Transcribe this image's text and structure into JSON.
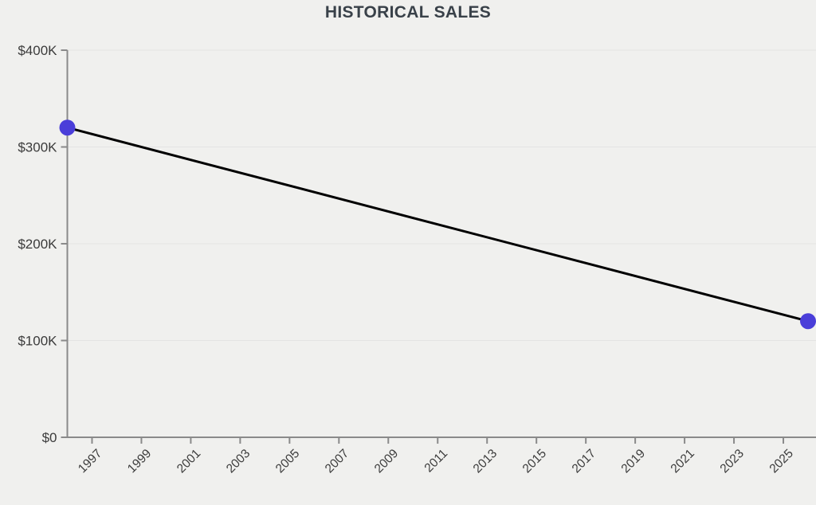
{
  "chart_data": {
    "type": "line",
    "title": "HISTORICAL SALES",
    "series": [
      {
        "name": "Historical sales",
        "points": [
          {
            "x": 1996,
            "y": 320000
          },
          {
            "x": 2026,
            "y": 120000
          }
        ]
      }
    ],
    "xlim": [
      1996,
      2026
    ],
    "ylim": [
      0,
      400000
    ],
    "x_tick_values": [
      1997,
      1999,
      2001,
      2003,
      2005,
      2007,
      2009,
      2011,
      2013,
      2015,
      2017,
      2019,
      2021,
      2023,
      2025
    ],
    "x_tick_labels": [
      "1997",
      "1999",
      "2001",
      "2003",
      "2005",
      "2007",
      "2009",
      "2011",
      "2013",
      "2015",
      "2017",
      "2019",
      "2021",
      "2023",
      "2025"
    ],
    "y_tick_values": [
      0,
      100000,
      200000,
      300000,
      400000
    ],
    "y_tick_labels": [
      "$0",
      "$100K",
      "$200K",
      "$300K",
      "$400K"
    ],
    "grid": "horizontal-only",
    "legend": "none",
    "colors": {
      "background": "#f0f0ee",
      "line": "#000000",
      "point": "#4a3ed9",
      "axis": "#8a8a8a",
      "grid": "#e3e3e3",
      "title": "#394149",
      "tick_text": "#3b3b3b"
    }
  }
}
